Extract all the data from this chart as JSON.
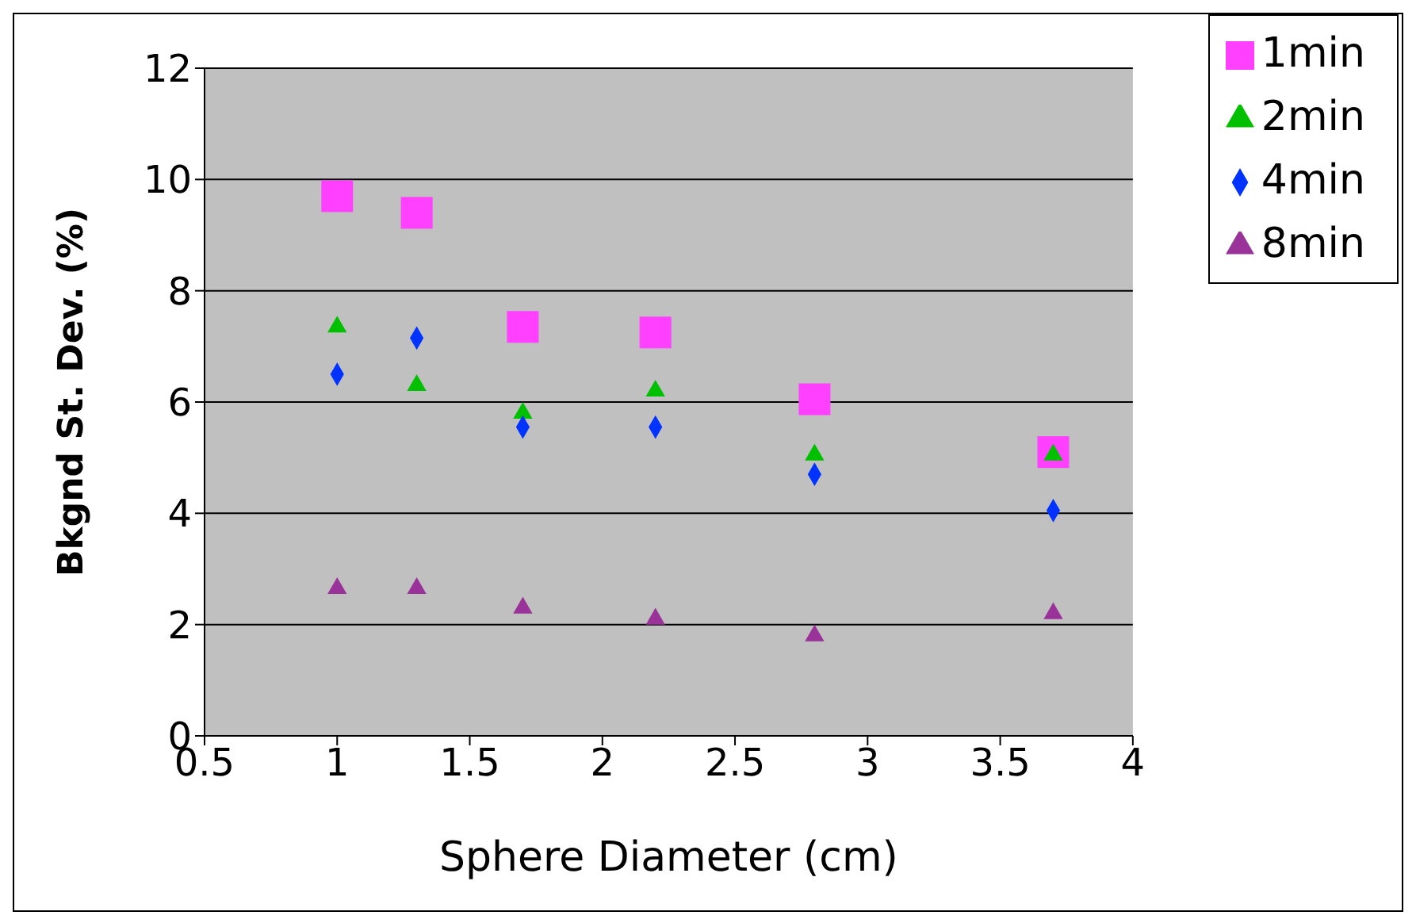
{
  "chart_data": {
    "type": "scatter",
    "xlabel": "Sphere  Diameter  (cm)",
    "ylabel": "Bkgnd St. Dev. (%)",
    "x": [
      1,
      1.3,
      1.7,
      2.2,
      2.8,
      3.7
    ],
    "xlim": [
      0.5,
      4
    ],
    "xticks": [
      0.5,
      1,
      1.5,
      2,
      2.5,
      3,
      3.5,
      4
    ],
    "ylim": [
      0,
      12
    ],
    "yticks": [
      0,
      2,
      4,
      6,
      8,
      10,
      12
    ],
    "grid": "y",
    "legend": "top right",
    "series": [
      {
        "name": "1min",
        "color": "#ff40ff",
        "marker": "square",
        "values": [
          9.7,
          9.4,
          7.35,
          7.25,
          6.05,
          5.1
        ]
      },
      {
        "name": "2min",
        "color": "#00c000",
        "marker": "triangle",
        "values": [
          7.35,
          6.3,
          5.8,
          6.2,
          5.05,
          5.05
        ]
      },
      {
        "name": "4min",
        "color": "#0033ff",
        "marker": "diamond",
        "values": [
          6.5,
          7.15,
          5.55,
          5.55,
          4.7,
          4.05
        ]
      },
      {
        "name": "8min",
        "color": "#993399",
        "marker": "triangle",
        "values": [
          2.65,
          2.65,
          2.3,
          2.1,
          1.8,
          2.2
        ]
      }
    ]
  }
}
